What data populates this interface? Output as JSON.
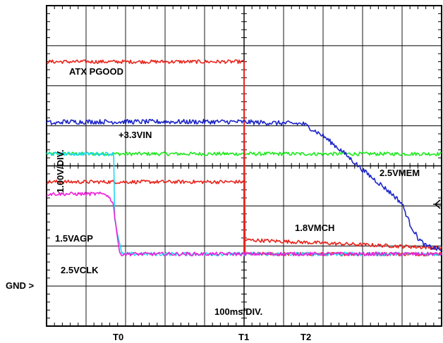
{
  "chart_data": {
    "type": "line",
    "title": "",
    "xlabel": "100ms/DIV.",
    "ylabel": "1.00V/DIV.",
    "x_unit": "ms",
    "y_unit": "V",
    "xlim": [
      0,
      1000
    ],
    "ylim": [
      -1.8,
      6.2
    ],
    "grid": true,
    "ground_marker": "GND >",
    "time_markers": [
      {
        "label": "T0",
        "x": 180
      },
      {
        "label": "T1",
        "x": 500
      },
      {
        "label": "T2",
        "x": 660
      }
    ],
    "series": [
      {
        "name": "ATX PGOOD",
        "color": "#e8241c",
        "x": [
          0,
          500,
          500,
          1000
        ],
        "y": [
          4.8,
          4.8,
          0,
          0
        ]
      },
      {
        "name": "+3.3VIN",
        "color": "#1c26c8",
        "x": [
          0,
          20,
          40,
          480,
          650,
          700,
          750,
          800,
          850,
          880,
          900,
          920,
          940,
          960,
          980,
          1000
        ],
        "y": [
          3.3,
          3.25,
          3.3,
          3.3,
          3.25,
          2.95,
          2.55,
          2.1,
          1.7,
          1.45,
          1.25,
          0.75,
          0.4,
          0.2,
          0.15,
          0.1
        ]
      },
      {
        "name": "2.5VMEM",
        "color": "#1ee81e",
        "x": [
          0,
          1000
        ],
        "y": [
          2.5,
          2.5
        ]
      },
      {
        "name": "1.8VMCH",
        "color": "#e8241c",
        "x": [
          0,
          500,
          500,
          510,
          1000
        ],
        "y": [
          1.8,
          1.8,
          0.35,
          0.35,
          0.15
        ]
      },
      {
        "name": "2.5VCLK",
        "color": "#20d8ee",
        "x": [
          0,
          170,
          172,
          190,
          1000
        ],
        "y": [
          2.5,
          2.5,
          0.9,
          0,
          0
        ]
      },
      {
        "name": "1.5VAGP",
        "color": "#ee20d8",
        "x": [
          0,
          150,
          168,
          185,
          1000
        ],
        "y": [
          1.5,
          1.5,
          1.3,
          0,
          0
        ]
      }
    ]
  }
}
